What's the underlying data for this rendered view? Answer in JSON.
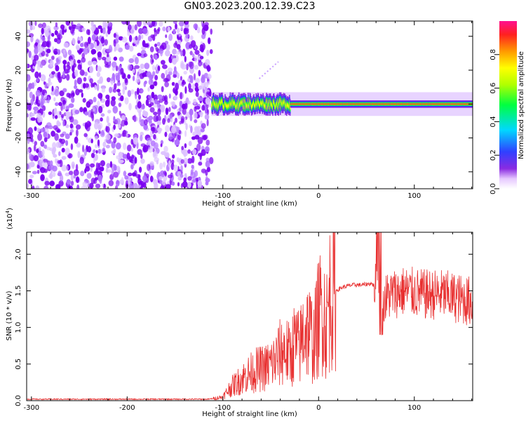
{
  "title": "GN03.2023.200.12.39.C23",
  "chart_data": [
    {
      "type": "heatmap",
      "xlabel": "Height of straight line (km)",
      "ylabel": "Frequency (Hz)",
      "xlim": [
        -305,
        161
      ],
      "ylim": [
        -50,
        49
      ],
      "x_ticks": [
        "-300",
        "-200",
        "-100",
        "0",
        "100"
      ],
      "y_ticks": [
        "-40",
        "-20",
        "0",
        "20",
        "40"
      ],
      "colorbar": {
        "label": "Normalized spectral amplitude",
        "range": [
          0,
          1
        ],
        "ticks": [
          "0.0",
          "0.2",
          "0.4",
          "0.6",
          "0.8"
        ]
      },
      "regions": [
        {
          "x_range": [
            -305,
            -112
          ],
          "description": "broadband noise, low amplitude (0.1-0.3)"
        },
        {
          "x_range": [
            -112,
            161
          ],
          "center_frequency_hz": 0,
          "band_width_hz": [
            -5,
            5
          ],
          "peak_amplitude": 0.95
        }
      ],
      "grid": false
    },
    {
      "type": "line",
      "xlabel": "Height of straight line (km)",
      "ylabel": "SNR (10 * v/v)",
      "y_scale_label": "(x10",
      "y_scale_exponent": "4",
      "y_scale_close": ")",
      "xlim": [
        -305,
        161
      ],
      "ylim": [
        0,
        2.3
      ],
      "x_ticks": [
        "-300",
        "-200",
        "-100",
        "0",
        "100"
      ],
      "y_ticks": [
        "0.0",
        "0.5",
        "1.0",
        "1.5",
        "2.0"
      ],
      "color": "#e83030",
      "series": [
        {
          "x": [
            -305,
            -200,
            -115,
            -100,
            -92,
            -85,
            -75,
            -65,
            -55,
            -50,
            -45,
            -40,
            -35,
            -30,
            -25,
            -20,
            -15,
            -10,
            -5,
            0,
            5,
            8,
            12,
            18,
            25,
            35,
            45,
            55,
            60,
            63,
            66,
            75,
            90,
            110,
            130,
            150,
            161
          ],
          "y": [
            0.02,
            0.02,
            0.02,
            0.05,
            0.18,
            0.25,
            0.35,
            0.42,
            0.45,
            0.5,
            0.55,
            0.65,
            0.7,
            0.6,
            0.8,
            0.7,
            1.0,
            0.95,
            0.8,
            1.15,
            1.3,
            1.0,
            1.45,
            1.5,
            1.55,
            1.58,
            1.58,
            1.6,
            1.55,
            1.6,
            1.35,
            1.45,
            1.5,
            1.45,
            1.45,
            1.38,
            1.35
          ]
        }
      ],
      "grid": false
    }
  ]
}
